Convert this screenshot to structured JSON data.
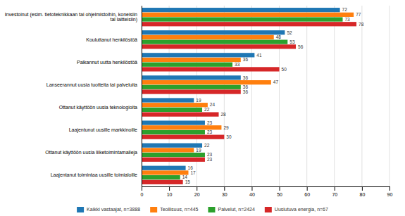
{
  "chart_data": {
    "type": "bar",
    "orientation": "horizontal",
    "categories": [
      "Investoinut  (esim. tietoteknikkaan tai ohjelmistoihin, koneisiin\ntal laitteisiin)",
      "Kouluttanut henkilöstöä",
      "Palkannut uutta henkilöstöä",
      "Lanseerannut uusia tuotteita tai palveluita",
      "Ottanut käyttöön uusia teknologioita",
      "Laajentunut uusille markkinoille",
      "Ottanut käyttöön uusia liiketoimintamalleja",
      "Laajentanut toimintaa uusille toimialoille"
    ],
    "series": [
      {
        "name": "Kaikki vastaajat, n=3888",
        "values": [
          72,
          52,
          41,
          36,
          19,
          23,
          22,
          16
        ]
      },
      {
        "name": "Teollisuus, n=445",
        "values": [
          77,
          48,
          36,
          47,
          24,
          29,
          19,
          17
        ]
      },
      {
        "name": "Palvelut, n=2424",
        "values": [
          73,
          53,
          33,
          36,
          22,
          23,
          23,
          14
        ]
      },
      {
        "name": "Uusiutuva energia, n=67",
        "values": [
          78,
          56,
          50,
          36,
          28,
          30,
          23,
          15
        ]
      }
    ],
    "xlim": [
      0,
      90
    ],
    "xticks": [
      0,
      10,
      20,
      30,
      40,
      50,
      60,
      70,
      80,
      90
    ],
    "grid": true,
    "data_labels": true,
    "legend": "bottom"
  }
}
